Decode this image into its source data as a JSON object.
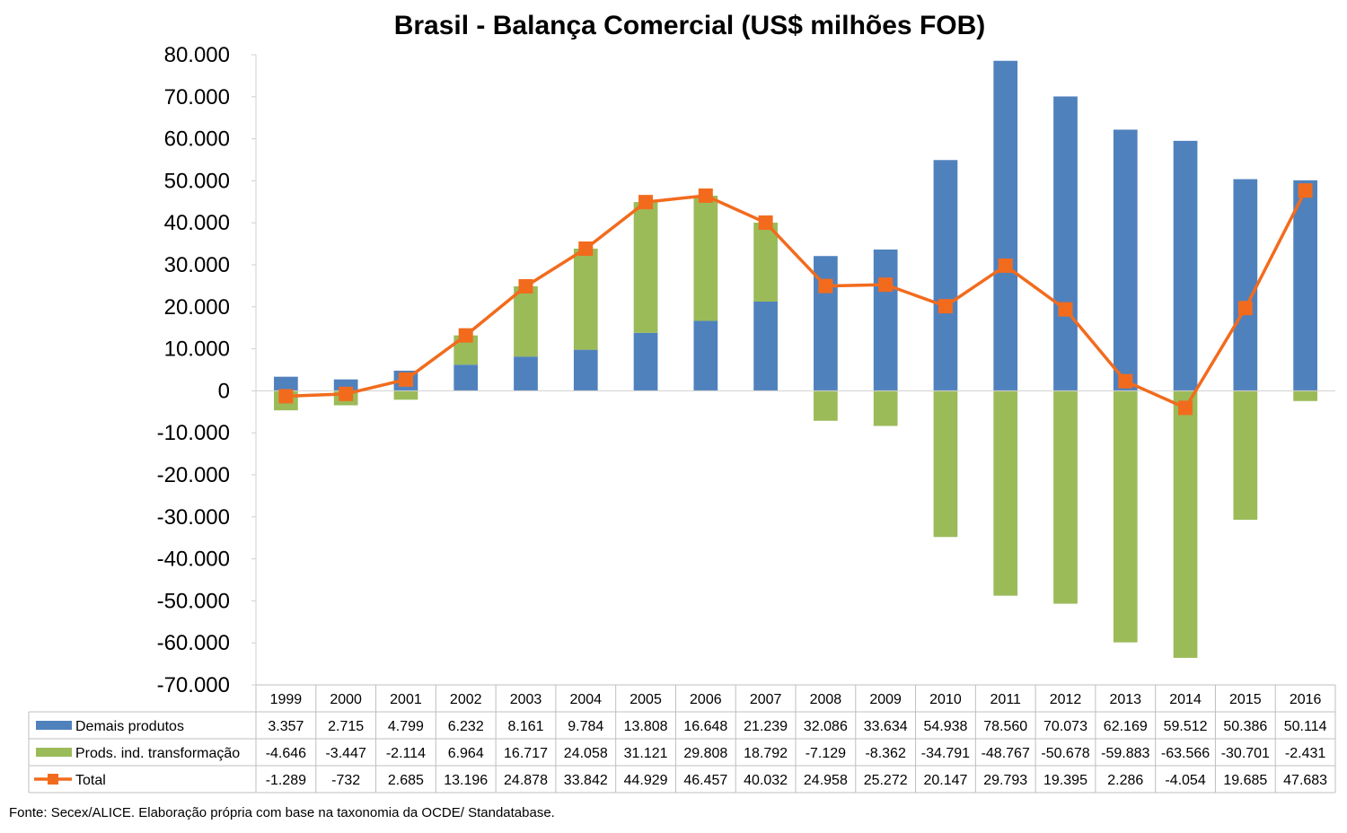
{
  "chart_data": {
    "type": "bar",
    "title": "Brasil - Balança Comercial (US$ milhões FOB)",
    "categories": [
      "1999",
      "2000",
      "2001",
      "2002",
      "2003",
      "2004",
      "2005",
      "2006",
      "2007",
      "2008",
      "2009",
      "2010",
      "2011",
      "2012",
      "2013",
      "2014",
      "2015",
      "2016"
    ],
    "ylim": [
      -70000,
      80000
    ],
    "yticks": [
      {
        "value": 80000,
        "label": "80.000"
      },
      {
        "value": 70000,
        "label": "70.000"
      },
      {
        "value": 60000,
        "label": "60.000"
      },
      {
        "value": 50000,
        "label": "50.000"
      },
      {
        "value": 40000,
        "label": "40.000"
      },
      {
        "value": 30000,
        "label": "30.000"
      },
      {
        "value": 20000,
        "label": "20.000"
      },
      {
        "value": 10000,
        "label": "10.000"
      },
      {
        "value": 0,
        "label": "0"
      },
      {
        "value": -10000,
        "label": "-10.000"
      },
      {
        "value": -20000,
        "label": "-20.000"
      },
      {
        "value": -30000,
        "label": "-30.000"
      },
      {
        "value": -40000,
        "label": "-40.000"
      },
      {
        "value": -50000,
        "label": "-50.000"
      },
      {
        "value": -60000,
        "label": "-60.000"
      },
      {
        "value": -70000,
        "label": "-70.000"
      }
    ],
    "series": [
      {
        "name": "Demais produtos",
        "kind": "bar",
        "color": "#4F81BD",
        "values": [
          3357,
          2715,
          4799,
          6232,
          8161,
          9784,
          13808,
          16648,
          21239,
          32086,
          33634,
          54938,
          78560,
          70073,
          62169,
          59512,
          50386,
          50114
        ],
        "labels": [
          "3.357",
          "2.715",
          "4.799",
          "6.232",
          "8.161",
          "9.784",
          "13.808",
          "16.648",
          "21.239",
          "32.086",
          "33.634",
          "54.938",
          "78.560",
          "70.073",
          "62.169",
          "59.512",
          "50.386",
          "50.114"
        ]
      },
      {
        "name": "Prods. ind. transformação",
        "kind": "bar",
        "color": "#9BBB59",
        "values": [
          -4646,
          -3447,
          -2114,
          6964,
          16717,
          24058,
          31121,
          29808,
          18792,
          -7129,
          -8362,
          -34791,
          -48767,
          -50678,
          -59883,
          -63566,
          -30701,
          -2431
        ],
        "labels": [
          "-4.646",
          "-3.447",
          "-2.114",
          "6.964",
          "16.717",
          "24.058",
          "31.121",
          "29.808",
          "18.792",
          "-7.129",
          "-8.362",
          "-34.791",
          "-48.767",
          "-50.678",
          "-59.883",
          "-63.566",
          "-30.701",
          "-2.431"
        ]
      },
      {
        "name": "Total",
        "kind": "line",
        "color": "#F26B1D",
        "values": [
          -1289,
          -732,
          2685,
          13196,
          24878,
          33842,
          44929,
          46457,
          40032,
          24958,
          25272,
          20147,
          29793,
          19395,
          2286,
          -4054,
          19685,
          47683
        ],
        "labels": [
          "-1.289",
          "-732",
          "2.685",
          "13.196",
          "24.878",
          "33.842",
          "44.929",
          "46.457",
          "40.032",
          "24.958",
          "25.272",
          "20.147",
          "29.793",
          "19.395",
          "2.286",
          "-4.054",
          "19.685",
          "47.683"
        ]
      }
    ],
    "grid": false,
    "legend": "data-table-below"
  },
  "footer": "Fonte: Secex/ALICE. Elaboração própria com base na taxonomia da OCDE/ Standatabase."
}
